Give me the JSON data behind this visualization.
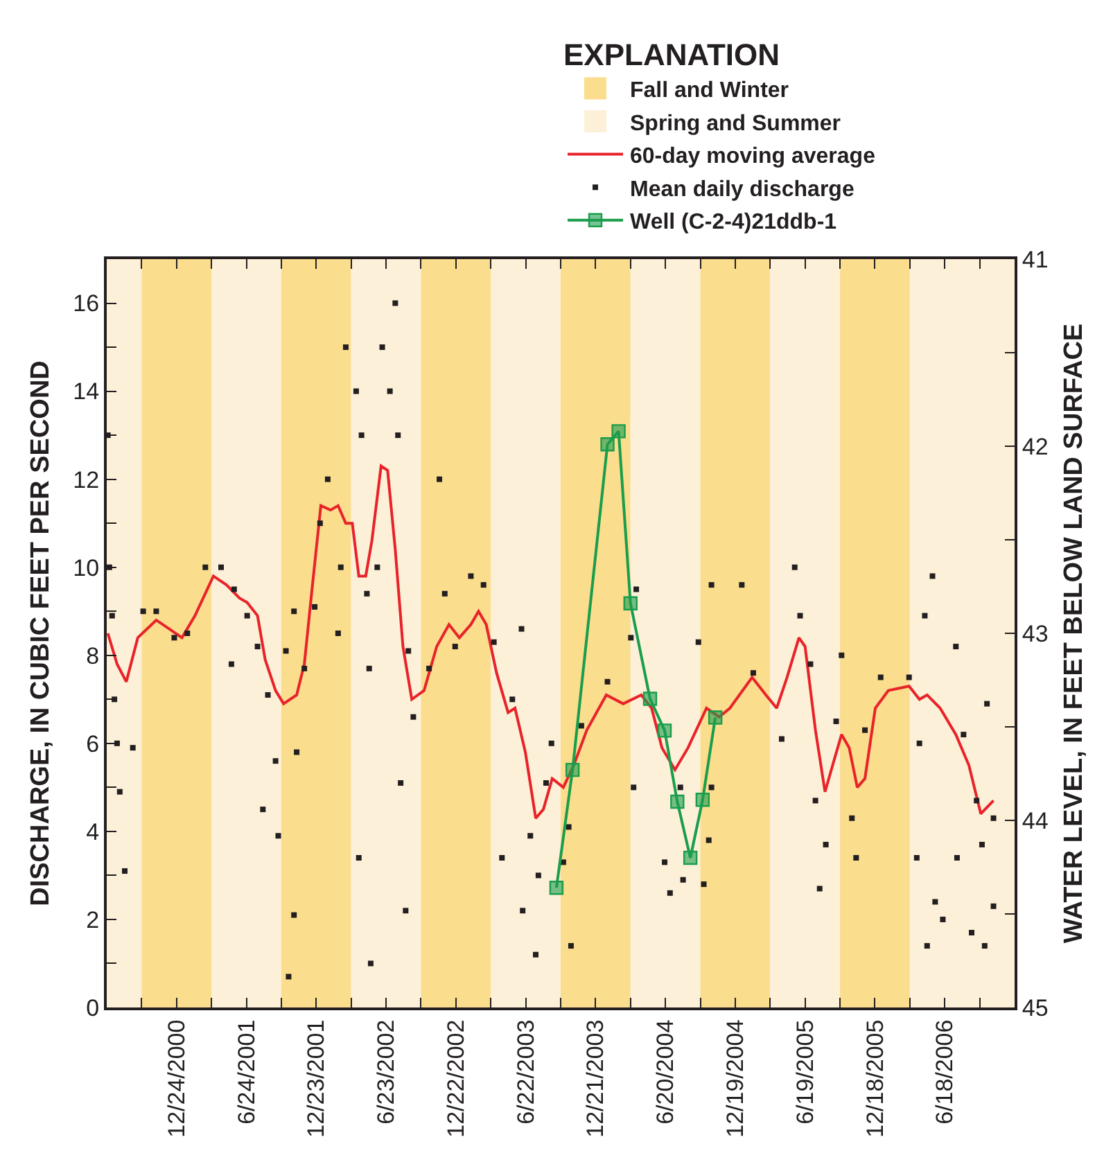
{
  "chart_data": {
    "type": "scatter",
    "ylabel": "DISCHARGE, IN CUBIC FEET PER SECOND",
    "y2label": "WATER LEVEL, IN FEET BELOW LAND SURFACE",
    "legend_title": "EXPLANATION",
    "legend": "top right",
    "grid": false,
    "xlim": [
      "2000-06-25",
      "2006-12-17"
    ],
    "xticks": [
      {
        "value": "2000-09-24",
        "label": null
      },
      {
        "value": "2000-12-24",
        "label": "12/24/2000"
      },
      {
        "value": "2001-03-25",
        "label": null
      },
      {
        "value": "2001-06-24",
        "label": "6/24/2001"
      },
      {
        "value": "2001-09-23",
        "label": null
      },
      {
        "value": "2001-12-23",
        "label": "12/23/2001"
      },
      {
        "value": "2002-03-24",
        "label": null
      },
      {
        "value": "2002-06-23",
        "label": "6/23/2002"
      },
      {
        "value": "2002-09-22",
        "label": null
      },
      {
        "value": "2002-12-22",
        "label": "12/22/2002"
      },
      {
        "value": "2003-03-23",
        "label": null
      },
      {
        "value": "2003-06-22",
        "label": "6/22/2003"
      },
      {
        "value": "2003-09-21",
        "label": null
      },
      {
        "value": "2003-12-21",
        "label": "12/21/2003"
      },
      {
        "value": "2004-03-21",
        "label": null
      },
      {
        "value": "2004-06-20",
        "label": "6/20/2004"
      },
      {
        "value": "2004-09-19",
        "label": null
      },
      {
        "value": "2004-12-19",
        "label": "12/19/2004"
      },
      {
        "value": "2005-03-20",
        "label": null
      },
      {
        "value": "2005-06-19",
        "label": "6/19/2005"
      },
      {
        "value": "2005-09-18",
        "label": null
      },
      {
        "value": "2005-12-18",
        "label": "12/18/2005"
      },
      {
        "value": "2006-03-19",
        "label": null
      },
      {
        "value": "2006-06-18",
        "label": "6/18/2006"
      },
      {
        "value": "2006-09-17",
        "label": null
      }
    ],
    "ylim": [
      0,
      17
    ],
    "yticks": [
      0,
      {
        "value": 1,
        "label": null
      },
      2,
      {
        "value": 3,
        "label": null
      },
      4,
      {
        "value": 5,
        "label": null
      },
      6,
      {
        "value": 7,
        "label": null
      },
      8,
      {
        "value": 9,
        "label": null
      },
      10,
      {
        "value": 11,
        "label": null
      },
      12,
      {
        "value": 13,
        "label": null
      },
      14,
      {
        "value": 15,
        "label": null
      },
      16
    ],
    "y2lim": [
      45,
      41
    ],
    "y2ticks": [
      45,
      {
        "value": 44.5,
        "label": null
      },
      44,
      {
        "value": 43.5,
        "label": null
      },
      43,
      {
        "value": 42.5,
        "label": null
      },
      42,
      {
        "value": 41.5,
        "label": null
      },
      41
    ],
    "bands": [
      {
        "axis": "x",
        "from": "2000-06-25",
        "to": "2000-09-24",
        "label": "Spring and Summer",
        "color": "#fdf0d8"
      },
      {
        "axis": "x",
        "from": "2000-09-24",
        "to": "2001-03-25",
        "label": "Fall and Winter",
        "color": "#fbdd8e"
      },
      {
        "axis": "x",
        "from": "2001-03-25",
        "to": "2001-09-23",
        "color": "#fdf0d8"
      },
      {
        "axis": "x",
        "from": "2001-09-23",
        "to": "2002-03-24",
        "color": "#fbdd8e"
      },
      {
        "axis": "x",
        "from": "2002-03-24",
        "to": "2002-09-22",
        "color": "#fdf0d8"
      },
      {
        "axis": "x",
        "from": "2002-09-22",
        "to": "2003-03-23",
        "color": "#fbdd8e"
      },
      {
        "axis": "x",
        "from": "2003-03-23",
        "to": "2003-09-21",
        "color": "#fdf0d8"
      },
      {
        "axis": "x",
        "from": "2003-09-21",
        "to": "2004-03-21",
        "color": "#fbdd8e"
      },
      {
        "axis": "x",
        "from": "2004-03-21",
        "to": "2004-09-19",
        "color": "#fdf0d8"
      },
      {
        "axis": "x",
        "from": "2004-09-19",
        "to": "2005-03-20",
        "color": "#fbdd8e"
      },
      {
        "axis": "x",
        "from": "2005-03-20",
        "to": "2005-09-18",
        "color": "#fdf0d8"
      },
      {
        "axis": "x",
        "from": "2005-09-18",
        "to": "2006-03-19",
        "color": "#fbdd8e"
      },
      {
        "axis": "x",
        "from": "2006-03-19",
        "to": "2006-12-17",
        "color": "#fdf0d8"
      }
    ],
    "series": [
      {
        "name": "60-day moving average",
        "type": "line",
        "color": "#e8232a",
        "marker": "none",
        "line_style": "solid",
        "x": [
          "2000-06-28",
          "2000-07-22",
          "2000-08-15",
          "2000-09-14",
          "2000-11-01",
          "2000-12-05",
          "2001-01-07",
          "2001-02-10",
          "2001-03-30",
          "2001-05-03",
          "2001-06-06",
          "2001-06-26",
          "2001-07-23",
          "2001-08-12",
          "2001-09-08",
          "2001-09-29",
          "2001-11-02",
          "2001-11-22",
          "2001-12-12",
          "2002-01-04",
          "2002-01-29",
          "2002-02-18",
          "2002-03-10",
          "2002-03-27",
          "2002-04-13",
          "2002-05-01",
          "2002-05-17",
          "2002-06-10",
          "2002-06-27",
          "2002-07-17",
          "2002-08-06",
          "2002-08-29",
          "2002-09-30",
          "2002-11-02",
          "2002-12-04",
          "2002-12-31",
          "2003-01-30",
          "2003-02-19",
          "2003-03-11",
          "2003-04-07",
          "2003-05-07",
          "2003-05-25",
          "2003-06-21",
          "2003-07-18",
          "2003-08-07",
          "2003-08-30",
          "2003-09-28",
          "2003-10-25",
          "2003-11-28",
          "2004-01-18",
          "2004-03-02",
          "2004-04-18",
          "2004-05-15",
          "2004-06-11",
          "2004-07-15",
          "2004-08-18",
          "2004-10-05",
          "2004-11-07",
          "2004-12-05",
          "2005-02-01",
          "2005-03-09",
          "2005-04-06",
          "2005-05-03",
          "2005-06-03",
          "2005-06-19",
          "2005-07-16",
          "2005-08-10",
          "2005-09-02",
          "2005-09-22",
          "2005-10-12",
          "2005-11-02",
          "2005-11-22",
          "2005-12-19",
          "2006-01-22",
          "2006-03-17",
          "2006-04-13",
          "2006-05-03",
          "2006-06-06",
          "2006-07-17",
          "2006-08-20",
          "2006-09-20",
          "2006-10-23"
        ],
        "values": [
          8.5,
          7.8,
          7.4,
          8.4,
          8.8,
          8.6,
          8.4,
          8.9,
          9.8,
          9.6,
          9.3,
          9.2,
          8.9,
          7.9,
          7.2,
          6.9,
          7.1,
          7.8,
          9.5,
          11.4,
          11.3,
          11.4,
          11.0,
          11.0,
          9.8,
          9.8,
          10.6,
          12.3,
          12.2,
          10.4,
          8.2,
          7.0,
          7.2,
          8.2,
          8.7,
          8.4,
          8.7,
          9.0,
          8.7,
          7.6,
          6.7,
          6.8,
          5.8,
          4.3,
          4.5,
          5.2,
          5.0,
          5.5,
          6.3,
          7.1,
          6.9,
          7.1,
          6.8,
          5.9,
          5.4,
          5.9,
          6.8,
          6.6,
          6.8,
          7.5,
          7.1,
          6.8,
          7.5,
          8.4,
          8.2,
          6.3,
          4.9,
          5.6,
          6.2,
          5.9,
          5.0,
          5.2,
          6.8,
          7.2,
          7.3,
          7.0,
          7.1,
          6.8,
          6.2,
          5.5,
          4.4,
          4.7
        ]
      },
      {
        "name": "Mean daily discharge",
        "color": "#231f20",
        "marker": "square",
        "x": [
          "2000-06-28",
          "2000-07-02",
          "2000-07-09",
          "2000-07-15",
          "2000-07-22",
          "2000-07-29",
          "2000-08-11",
          "2000-09-01",
          "2000-09-28",
          "2000-11-01",
          "2000-12-18",
          "2001-01-21",
          "2001-03-09",
          "2001-04-19",
          "2001-05-23",
          "2001-06-26",
          "2001-05-16",
          "2001-07-23",
          "2001-08-19",
          "2001-09-08",
          "2001-08-06",
          "2001-09-15",
          "2001-10-12",
          "2001-10-26",
          "2001-11-02",
          "2001-10-05",
          "2001-10-26",
          "2001-11-22",
          "2001-12-19",
          "2002-01-02",
          "2002-01-22",
          "2002-02-18",
          "2002-02-25",
          "2002-03-10",
          "2002-04-06",
          "2002-04-20",
          "2002-04-13",
          "2002-05-04",
          "2002-05-10",
          "2002-05-14",
          "2002-05-31",
          "2002-06-13",
          "2002-07-03",
          "2002-07-17",
          "2002-07-24",
          "2002-07-31",
          "2002-08-13",
          "2002-08-20",
          "2002-09-02",
          "2002-10-13",
          "2002-11-09",
          "2002-11-23",
          "2002-12-20",
          "2003-01-30",
          "2003-03-04",
          "2003-03-31",
          "2003-04-21",
          "2003-05-18",
          "2003-06-11",
          "2003-06-14",
          "2003-07-04",
          "2003-07-18",
          "2003-07-25",
          "2003-08-14",
          "2003-08-28",
          "2003-09-28",
          "2003-10-18",
          "2003-10-12",
          "2003-11-14",
          "2004-01-21",
          "2004-03-22",
          "2004-03-29",
          "2004-04-05",
          "2004-07-02",
          "2004-06-18",
          "2004-07-29",
          "2004-08-05",
          "2004-09-14",
          "2004-09-28",
          "2004-10-11",
          "2004-10-18",
          "2004-10-18",
          "2005-01-05",
          "2005-02-04",
          "2005-04-19",
          "2005-05-23",
          "2005-06-06",
          "2005-07-03",
          "2005-07-16",
          "2005-07-27",
          "2005-08-12",
          "2005-09-08",
          "2005-09-22",
          "2005-10-19",
          "2005-10-30",
          "2005-11-22",
          "2006-01-02",
          "2006-03-17",
          "2006-04-06",
          "2006-04-13",
          "2006-04-27",
          "2006-05-03",
          "2006-05-17",
          "2006-05-24",
          "2006-06-13",
          "2006-07-17",
          "2006-07-20",
          "2006-08-06",
          "2006-08-27",
          "2006-09-09",
          "2006-09-23",
          "2006-09-30",
          "2006-10-06",
          "2006-10-23",
          "2006-10-23"
        ],
        "values": [
          13,
          10,
          8.9,
          7,
          6,
          4.9,
          3.1,
          5.9,
          9,
          9,
          8.4,
          8.5,
          10,
          10,
          9.5,
          8.9,
          7.8,
          8.2,
          7.1,
          5.6,
          4.5,
          3.9,
          0.7,
          2.1,
          5.8,
          8.1,
          9,
          7.7,
          9.1,
          11,
          12,
          8.5,
          10,
          15,
          14,
          13,
          3.4,
          9.4,
          7.7,
          1,
          10,
          15,
          14,
          16,
          13,
          5.1,
          2.2,
          8.1,
          6.6,
          7.7,
          12,
          9.4,
          8.2,
          9.8,
          9.6,
          8.3,
          3.4,
          7,
          8.6,
          2.2,
          3.9,
          1.2,
          3,
          5.1,
          6,
          3.3,
          1.4,
          4.1,
          6.4,
          7.4,
          8.4,
          5,
          9.5,
          2.6,
          3.3,
          5,
          2.9,
          8.3,
          2.8,
          3.8,
          9.6,
          5,
          9.6,
          7.6,
          6.1,
          10,
          8.9,
          7.8,
          4.7,
          2.7,
          3.7,
          6.5,
          8,
          4.3,
          3.4,
          6.3,
          7.5,
          7.5,
          3.4,
          6,
          8.9,
          1.4,
          9.8,
          2.4,
          2,
          8.2,
          3.4,
          6.2,
          1.7,
          4.7,
          3.7,
          1.4,
          6.9,
          2.3,
          4.3
        ]
      },
      {
        "name": "Well (C-2-4)21ddb-1",
        "type": "line",
        "axis": "y2",
        "color": "#1a9d4c",
        "marker": "square",
        "line_style": "solid",
        "x": [
          "2003-09-10",
          "2003-10-22",
          "2004-01-21",
          "2004-02-19",
          "2004-03-21",
          "2004-05-11",
          "2004-06-18",
          "2004-07-21",
          "2004-08-24",
          "2004-09-25",
          "2004-10-28"
        ],
        "values": [
          44.36,
          43.73,
          41.99,
          41.92,
          42.84,
          43.35,
          43.52,
          43.9,
          44.2,
          43.89,
          43.45
        ]
      }
    ]
  }
}
